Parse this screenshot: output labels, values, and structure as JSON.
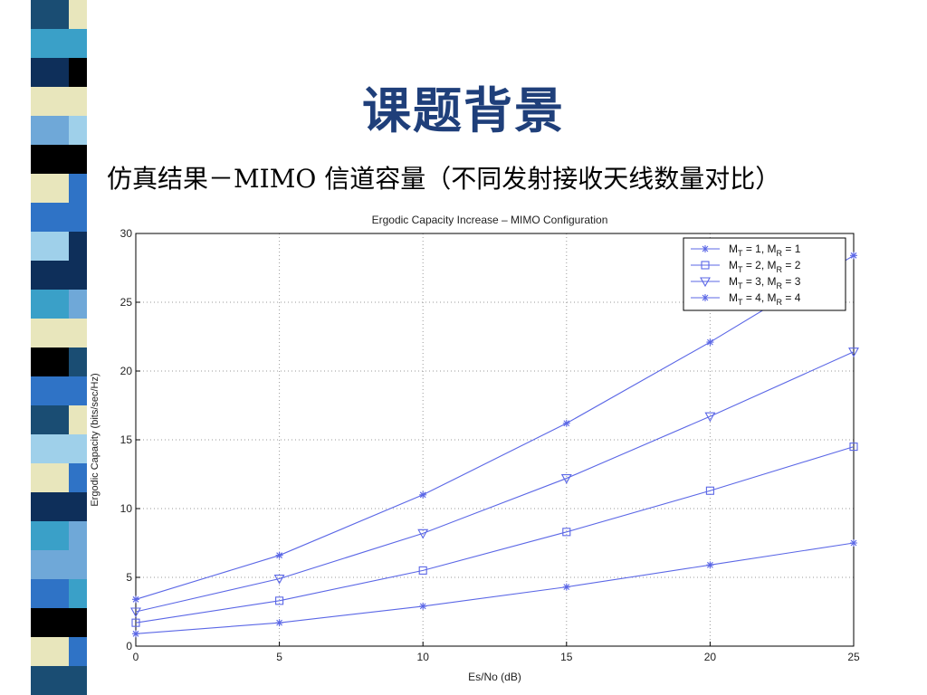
{
  "slide": {
    "title": "课题背景",
    "subtitle": "仿真结果－MIMO 信道容量（不同发射接收天线数量对比）"
  },
  "decor": {
    "stripe_colors": [
      "#1a4d73",
      "#3aa0c8",
      "#0e2f5a",
      "#e8e6bc",
      "#6fa8d8",
      "#000000",
      "#2f73c6",
      "#9fd0ea"
    ]
  },
  "chart_data": {
    "type": "line",
    "title": "Ergodic Capacity Increase – MIMO Configuration",
    "xlabel": "Es/No (dB)",
    "ylabel": "Ergodic Capacity (bits/sec/Hz)",
    "xlim": [
      0,
      25
    ],
    "ylim": [
      0,
      30
    ],
    "xticks": [
      0,
      5,
      10,
      15,
      20,
      25
    ],
    "yticks": [
      0,
      5,
      10,
      15,
      20,
      25,
      30
    ],
    "grid": true,
    "legend_position": "top-right",
    "color": "#5b67e6",
    "x": [
      0,
      5,
      10,
      15,
      20,
      25
    ],
    "series": [
      {
        "name": "MT = 1, MR = 1",
        "marker": "star",
        "values": [
          0.9,
          1.7,
          2.9,
          4.3,
          5.9,
          7.5
        ]
      },
      {
        "name": "MT = 2, MR = 2",
        "marker": "square",
        "values": [
          1.7,
          3.3,
          5.5,
          8.3,
          11.3,
          14.5
        ]
      },
      {
        "name": "MT = 3, MR = 3",
        "marker": "triangle",
        "values": [
          2.5,
          4.9,
          8.2,
          12.2,
          16.7,
          21.4
        ]
      },
      {
        "name": "MT = 4, MR = 4",
        "marker": "star",
        "values": [
          3.4,
          6.6,
          11.0,
          16.2,
          22.1,
          28.4
        ]
      }
    ],
    "legend_labels": [
      {
        "m1": "M",
        "s1": "T",
        "mid": " = 1, M",
        "s2": "R",
        "end": " = 1"
      },
      {
        "m1": "M",
        "s1": "T",
        "mid": " = 2, M",
        "s2": "R",
        "end": " = 2"
      },
      {
        "m1": "M",
        "s1": "T",
        "mid": " = 3, M",
        "s2": "R",
        "end": " = 3"
      },
      {
        "m1": "M",
        "s1": "T",
        "mid": " = 4, M",
        "s2": "R",
        "end": " = 4"
      }
    ]
  }
}
